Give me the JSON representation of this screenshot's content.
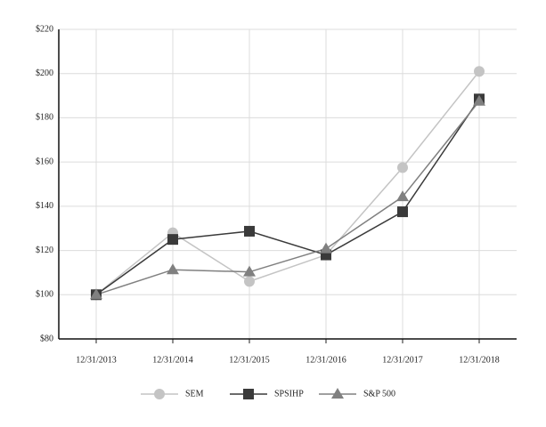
{
  "chart_data": {
    "type": "line",
    "categories": [
      "12/31/2013",
      "12/31/2014",
      "12/31/2015",
      "12/31/2016",
      "12/31/2017",
      "12/31/2018"
    ],
    "series": [
      {
        "name": "SEM",
        "color": "#c4c4c4",
        "marker": "circle",
        "values": [
          100,
          128,
          106,
          118,
          157.5,
          201
        ]
      },
      {
        "name": "SPSIHP",
        "color": "#3a3a3a",
        "marker": "square",
        "values": [
          100,
          125,
          128.7,
          118,
          137.5,
          188.5
        ]
      },
      {
        "name": "S&P 500",
        "color": "#808080",
        "marker": "triangle",
        "values": [
          100,
          111.3,
          110.3,
          120.8,
          144.3,
          187.5
        ]
      }
    ],
    "ylim": [
      80,
      220
    ],
    "yticks": [
      {
        "value": 80,
        "label": "$80"
      },
      {
        "value": 100,
        "label": "$100"
      },
      {
        "value": 120,
        "label": "$120"
      },
      {
        "value": 140,
        "label": "$140"
      },
      {
        "value": 160,
        "label": "$160"
      },
      {
        "value": 180,
        "label": "$180"
      },
      {
        "value": 200,
        "label": "$200"
      },
      {
        "value": 220,
        "label": "$220"
      }
    ],
    "grid": true,
    "legend": "bottom"
  }
}
